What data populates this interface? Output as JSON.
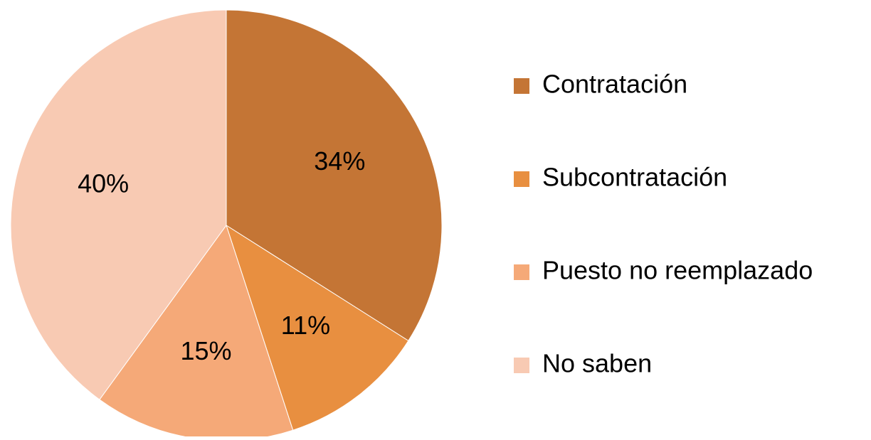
{
  "chart_data": {
    "type": "pie",
    "categories": [
      "Contratación",
      "Subcontratación",
      "Puesto no reemplazado",
      "No saben"
    ],
    "values": [
      34,
      11,
      15,
      40
    ],
    "value_labels": [
      "34%",
      "11%",
      "15%",
      "40%"
    ],
    "colors": [
      "#C47535",
      "#E88F40",
      "#F5A978",
      "#F8CAB3"
    ],
    "legend": "right"
  }
}
